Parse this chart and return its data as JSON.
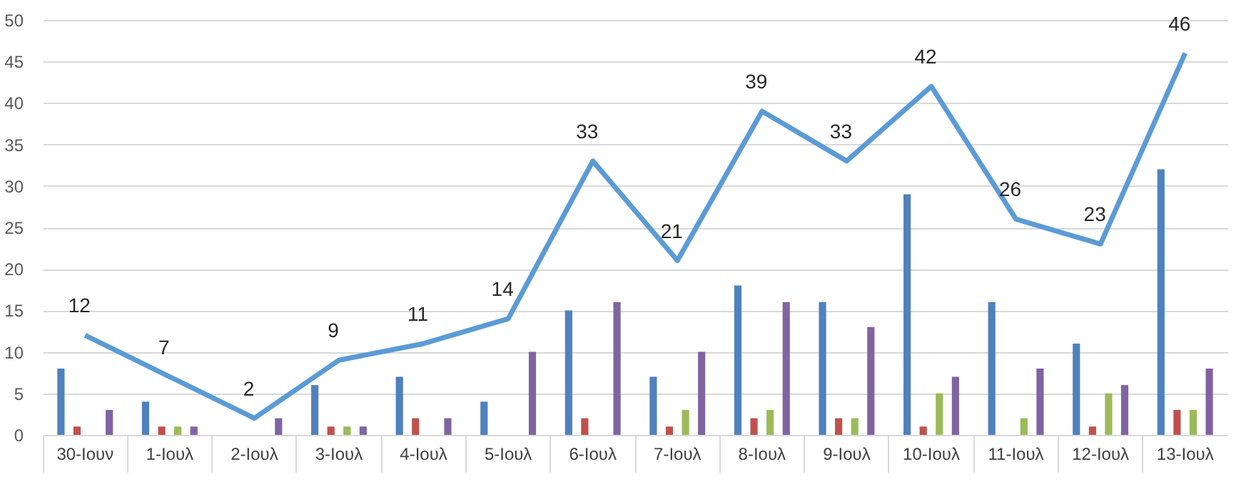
{
  "chart_data": {
    "type": "bar",
    "categories": [
      "30-Ιουν",
      "1-Ιουλ",
      "2-Ιουλ",
      "3-Ιουλ",
      "4-Ιουλ",
      "5-Ιουλ",
      "6-Ιουλ",
      "7-Ιουλ",
      "8-Ιουλ",
      "9-Ιουλ",
      "10-Ιουλ",
      "11-Ιουλ",
      "12-Ιουλ",
      "13-Ιουλ"
    ],
    "series": [
      {
        "color": "#4f81bd",
        "values": [
          8,
          4,
          0,
          6,
          7,
          4,
          15,
          7,
          18,
          16,
          29,
          16,
          11,
          32
        ]
      },
      {
        "color": "#c0504d",
        "values": [
          1,
          1,
          0,
          1,
          2,
          0,
          2,
          1,
          2,
          2,
          1,
          0,
          1,
          3
        ]
      },
      {
        "color": "#9bbb59",
        "values": [
          0,
          1,
          0,
          1,
          0,
          0,
          0,
          3,
          3,
          2,
          5,
          2,
          5,
          3
        ]
      },
      {
        "color": "#8064a2",
        "values": [
          3,
          1,
          2,
          1,
          2,
          10,
          16,
          10,
          16,
          13,
          7,
          8,
          6,
          8
        ]
      },
      {
        "type": "line",
        "color": "#5b9bd5",
        "values": [
          12,
          7,
          2,
          9,
          11,
          14,
          33,
          21,
          39,
          33,
          42,
          26,
          23,
          46
        ],
        "value_labels": [
          "12",
          "7",
          "2",
          "9",
          "11",
          "14",
          "33",
          "21",
          "39",
          "33",
          "42",
          "26",
          "23",
          "46"
        ]
      }
    ],
    "ylim": [
      0,
      50
    ],
    "yticks": [
      0,
      5,
      10,
      15,
      20,
      25,
      30,
      35,
      40,
      45,
      50
    ],
    "grid": "y",
    "marker": "none",
    "line_style": "solid"
  }
}
